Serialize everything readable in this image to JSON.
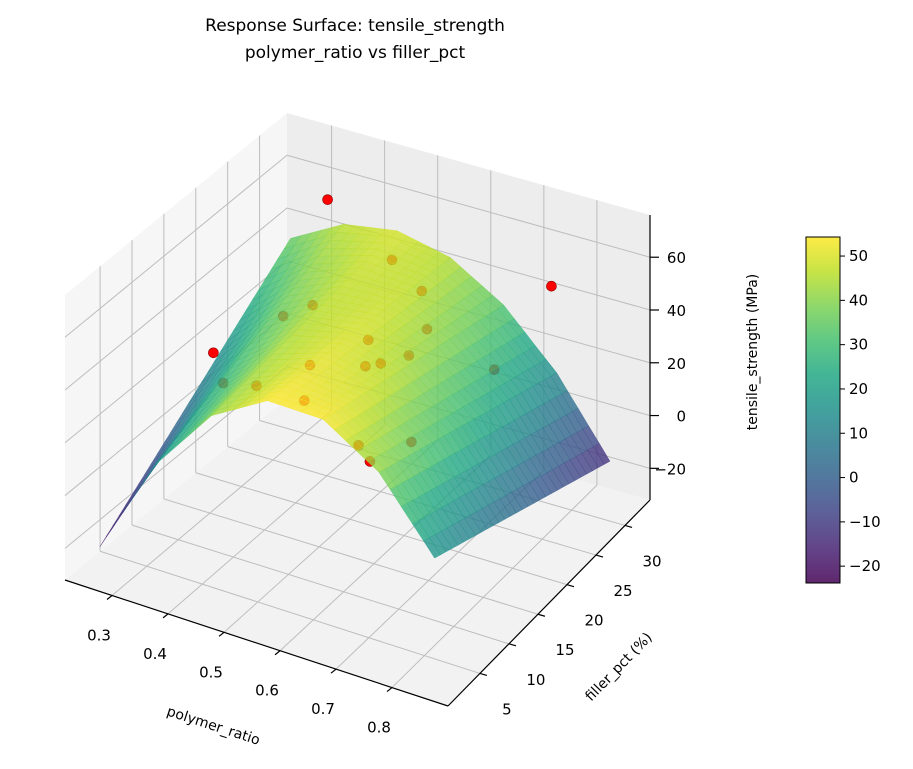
{
  "chart_data": {
    "type": "surface",
    "title": [
      "Response Surface: tensile_strength",
      "polymer_ratio vs filler_pct"
    ],
    "xlabel": "polymer_ratio",
    "ylabel": "filler_pct (%)",
    "zlabel": "tensile_strength (MPa)",
    "xlim": [
      0.216,
      0.9
    ],
    "ylim": [
      -0.5,
      34.3
    ],
    "zlim": [
      -32,
      76
    ],
    "xticks": [
      0.3,
      0.4,
      0.5,
      0.6,
      0.7,
      0.8
    ],
    "xtick_labels": [
      "0.3",
      "0.4",
      "0.5",
      "0.6",
      "0.7",
      "0.8"
    ],
    "yticks": [
      5,
      10,
      15,
      20,
      25,
      30
    ],
    "ytick_labels": [
      "5",
      "10",
      "15",
      "20",
      "25",
      "30"
    ],
    "zticks": [
      -20,
      0,
      20,
      40,
      60
    ],
    "ztick_labels": [
      "−20",
      "0",
      "20",
      "40",
      "60"
    ],
    "grid": true,
    "colormap": "viridis",
    "surface": {
      "x": [
        0.25,
        0.35,
        0.45,
        0.55,
        0.65,
        0.75,
        0.85
      ],
      "y": [
        2,
        7,
        12,
        17,
        22,
        27,
        32
      ],
      "z": [
        [
          -22.0,
          16.1,
          41.4,
          54.0,
          53.8,
          40.7,
          15.0
        ],
        [
          -12.5,
          21.1,
          42.7,
          52.5,
          50.3,
          36.0,
          10.0
        ],
        [
          -3.0,
          26.1,
          44.1,
          51.0,
          46.8,
          31.4,
          5.0
        ],
        [
          6.5,
          31.1,
          45.4,
          49.5,
          43.3,
          26.7,
          0.0
        ],
        [
          16.0,
          36.1,
          46.7,
          48.0,
          39.8,
          22.0,
          -5.0
        ],
        [
          25.5,
          41.1,
          48.1,
          46.5,
          36.3,
          17.4,
          -10.0
        ],
        [
          35.0,
          46.1,
          49.4,
          45.0,
          32.8,
          12.7,
          -15.0
        ]
      ],
      "opacity": 0.8
    },
    "points": {
      "color": "#ff0000",
      "x": [
        0.39,
        0.74,
        0.31,
        0.308,
        0.466,
        0.508,
        0.52,
        0.45,
        0.5,
        0.325,
        0.369,
        0.46,
        0.526,
        0.377,
        0.435,
        0.452,
        0.5,
        0.294,
        0.644,
        0.556
      ],
      "y": [
        26,
        32,
        14.7,
        16.4,
        15.6,
        20.7,
        21.5,
        31.2,
        31.7,
        24.5,
        25.4,
        26.5,
        30.3,
        24.3,
        28.2,
        29.2,
        29.6,
        22.9,
        31,
        25.1
      ],
      "z": [
        70,
        45,
        30,
        15,
        20,
        -5,
        -12,
        40,
        30,
        25,
        30,
        20,
        20,
        10,
        5,
        5,
        10,
        0,
        10,
        -10
      ]
    },
    "colorbar": {
      "range": [
        -23.8,
        54.3
      ],
      "ticks": [
        -20,
        -10,
        0,
        10,
        20,
        30,
        40,
        50
      ],
      "tick_labels": [
        "−20",
        "−10",
        "0",
        "10",
        "20",
        "30",
        "40",
        "50"
      ]
    }
  }
}
